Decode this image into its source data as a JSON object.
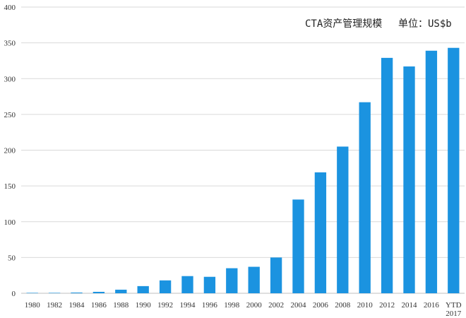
{
  "chart_data": {
    "type": "bar",
    "title": "CTA资产管理规模",
    "unit_label": "单位：US$b",
    "categories": [
      [
        "1980"
      ],
      [
        "1982"
      ],
      [
        "1984"
      ],
      [
        "1986"
      ],
      [
        "1988"
      ],
      [
        "1990"
      ],
      [
        "1992"
      ],
      [
        "1994"
      ],
      [
        "1996"
      ],
      [
        "1998"
      ],
      [
        "2000"
      ],
      [
        "2002"
      ],
      [
        "2004"
      ],
      [
        "2006"
      ],
      [
        "2008"
      ],
      [
        "2010"
      ],
      [
        "2012"
      ],
      [
        "2014"
      ],
      [
        "2016"
      ],
      [
        "YTD",
        "2017"
      ]
    ],
    "values": [
      0.2,
      0.4,
      1,
      2,
      5,
      10,
      18,
      24,
      23,
      35,
      37,
      50,
      131,
      169,
      205,
      267,
      329,
      317,
      339,
      343
    ],
    "ylim": [
      0,
      400
    ],
    "yticks": [
      0,
      50,
      100,
      150,
      200,
      250,
      300,
      350,
      400
    ],
    "grid": true,
    "bar_color": "#1b93e0",
    "xlabel": "",
    "ylabel": ""
  }
}
